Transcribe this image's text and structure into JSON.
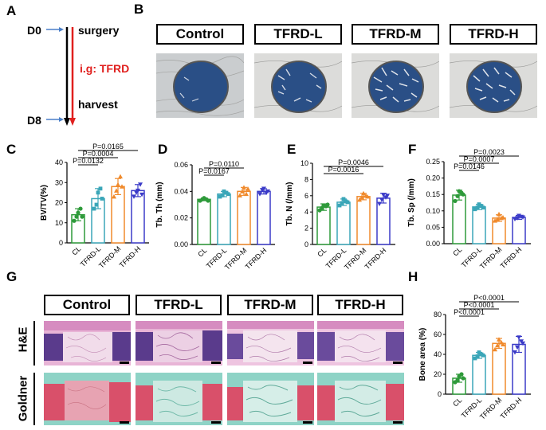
{
  "panels": {
    "A": "A",
    "B": "B",
    "C": "C",
    "D": "D",
    "E": "E",
    "F": "F",
    "G": "G",
    "H": "H"
  },
  "timeline": {
    "start_day": "D0",
    "end_day": "D8",
    "start_event": "surgery",
    "treatment": "i.g: TFRD",
    "end_event": "harvest",
    "treatment_color": "#e0201e"
  },
  "groups": [
    "Control",
    "TFRD-L",
    "TFRD-M",
    "TFRD-H"
  ],
  "histology_rows": [
    "H&E",
    "Goldner"
  ],
  "colors": {
    "CL": "#2e9a3a",
    "TFRD-L": "#3aa6b8",
    "TFRD-M": "#f08a2c",
    "TFRD-H": "#3b3bc8",
    "bone_bg": "#2a4f86"
  },
  "chart_data": [
    {
      "id": "C",
      "type": "bar",
      "ylabel": "BV/TV(%)",
      "ylim": [
        0,
        40
      ],
      "yticks": [
        0,
        10,
        20,
        30,
        40
      ],
      "categories": [
        "CL",
        "TFRD-L",
        "TFRD-M",
        "TFRD-H"
      ],
      "values": [
        14,
        22,
        28,
        26
      ],
      "errors": [
        3,
        5,
        4,
        3
      ],
      "points": [
        [
          11,
          13,
          15,
          17,
          13
        ],
        [
          17,
          19,
          25,
          27,
          22
        ],
        [
          23,
          26,
          29,
          33,
          28
        ],
        [
          23,
          25,
          26,
          29,
          24
        ]
      ],
      "comparisons": [
        {
          "label": "P=0.0165",
          "from": 0,
          "to": 3
        },
        {
          "label": "P=0.0004",
          "from": 0,
          "to": 2
        },
        {
          "label": "P=0.0132",
          "from": 0,
          "to": 1
        }
      ]
    },
    {
      "id": "D",
      "type": "bar",
      "ylabel": "Tb. Th (mm)",
      "ylim": [
        0,
        0.06
      ],
      "yticks": [
        "0.00",
        "0.02",
        "0.04",
        "0.06"
      ],
      "categories": [
        "CL",
        "TFRD-L",
        "TFRD-M",
        "TFRD-H"
      ],
      "values": [
        0.034,
        0.038,
        0.04,
        0.04
      ],
      "errors": [
        0.001,
        0.002,
        0.003,
        0.002
      ],
      "points": [
        [
          0.033,
          0.034,
          0.035,
          0.034,
          0.033
        ],
        [
          0.036,
          0.037,
          0.04,
          0.039,
          0.038
        ],
        [
          0.037,
          0.04,
          0.043,
          0.038,
          0.042
        ],
        [
          0.038,
          0.041,
          0.042,
          0.039,
          0.04
        ]
      ],
      "comparisons": [
        {
          "label": "P=0.0110",
          "from": 0,
          "to": 2
        },
        {
          "label": "P=0.0167",
          "from": 0,
          "to": 1
        }
      ]
    },
    {
      "id": "E",
      "type": "bar",
      "ylabel": "Tb. N (/mm)",
      "ylim": [
        0,
        10
      ],
      "yticks": [
        0,
        2,
        4,
        6,
        8,
        10
      ],
      "categories": [
        "CL",
        "TFRD-L",
        "TFRD-M",
        "TFRD-H"
      ],
      "values": [
        4.6,
        5.2,
        5.9,
        5.7
      ],
      "errors": [
        0.4,
        0.4,
        0.4,
        0.6
      ],
      "points": [
        [
          4.2,
          4.5,
          4.8,
          4.7,
          4.9
        ],
        [
          4.8,
          5.1,
          5.6,
          5.3,
          5.2
        ],
        [
          5.5,
          5.8,
          6.3,
          6.0,
          5.9
        ],
        [
          5.0,
          5.5,
          6.1,
          5.8,
          6.0
        ]
      ],
      "comparisons": [
        {
          "label": "P=0.0046",
          "from": 0,
          "to": 3
        },
        {
          "label": "P=0.0016",
          "from": 0,
          "to": 2
        }
      ]
    },
    {
      "id": "F",
      "type": "bar",
      "ylabel": "Tb. Sp (/mm)",
      "ylim": [
        0,
        0.25
      ],
      "yticks": [
        "0.00",
        "0.05",
        "0.10",
        "0.15",
        "0.20",
        "0.25"
      ],
      "categories": [
        "CL",
        "TFRD-L",
        "TFRD-M",
        "TFRD-H"
      ],
      "values": [
        0.148,
        0.112,
        0.078,
        0.08
      ],
      "errors": [
        0.015,
        0.008,
        0.01,
        0.006
      ],
      "points": [
        [
          0.13,
          0.145,
          0.16,
          0.155,
          0.15
        ],
        [
          0.105,
          0.11,
          0.12,
          0.115,
          0.11
        ],
        [
          0.07,
          0.075,
          0.09,
          0.078,
          0.08
        ],
        [
          0.075,
          0.078,
          0.085,
          0.082,
          0.08
        ]
      ],
      "comparisons": [
        {
          "label": "P=0.0023",
          "from": 0,
          "to": 3
        },
        {
          "label": "P=0.0007",
          "from": 0,
          "to": 2
        },
        {
          "label": "P=0.0146",
          "from": 0,
          "to": 1
        }
      ]
    },
    {
      "id": "H",
      "type": "bar",
      "ylabel": "Bone area (%)",
      "ylim": [
        0,
        80
      ],
      "yticks": [
        0,
        20,
        40,
        60,
        80
      ],
      "categories": [
        "CL",
        "TFRD-L",
        "TFRD-M",
        "TFRD-H"
      ],
      "values": [
        16,
        39,
        51,
        50
      ],
      "errors": [
        4,
        3,
        5,
        8
      ],
      "points": [
        [
          12,
          14,
          18,
          20,
          16
        ],
        [
          36,
          38,
          42,
          40,
          39
        ],
        [
          45,
          49,
          55,
          52,
          50
        ],
        [
          42,
          47,
          57,
          53,
          51
        ]
      ],
      "comparisons": [
        {
          "label": "P<0.0001",
          "from": 0,
          "to": 3
        },
        {
          "label": "P<0.0001",
          "from": 0,
          "to": 2
        },
        {
          "label": "P<0.0001",
          "from": 0,
          "to": 1
        }
      ]
    }
  ]
}
